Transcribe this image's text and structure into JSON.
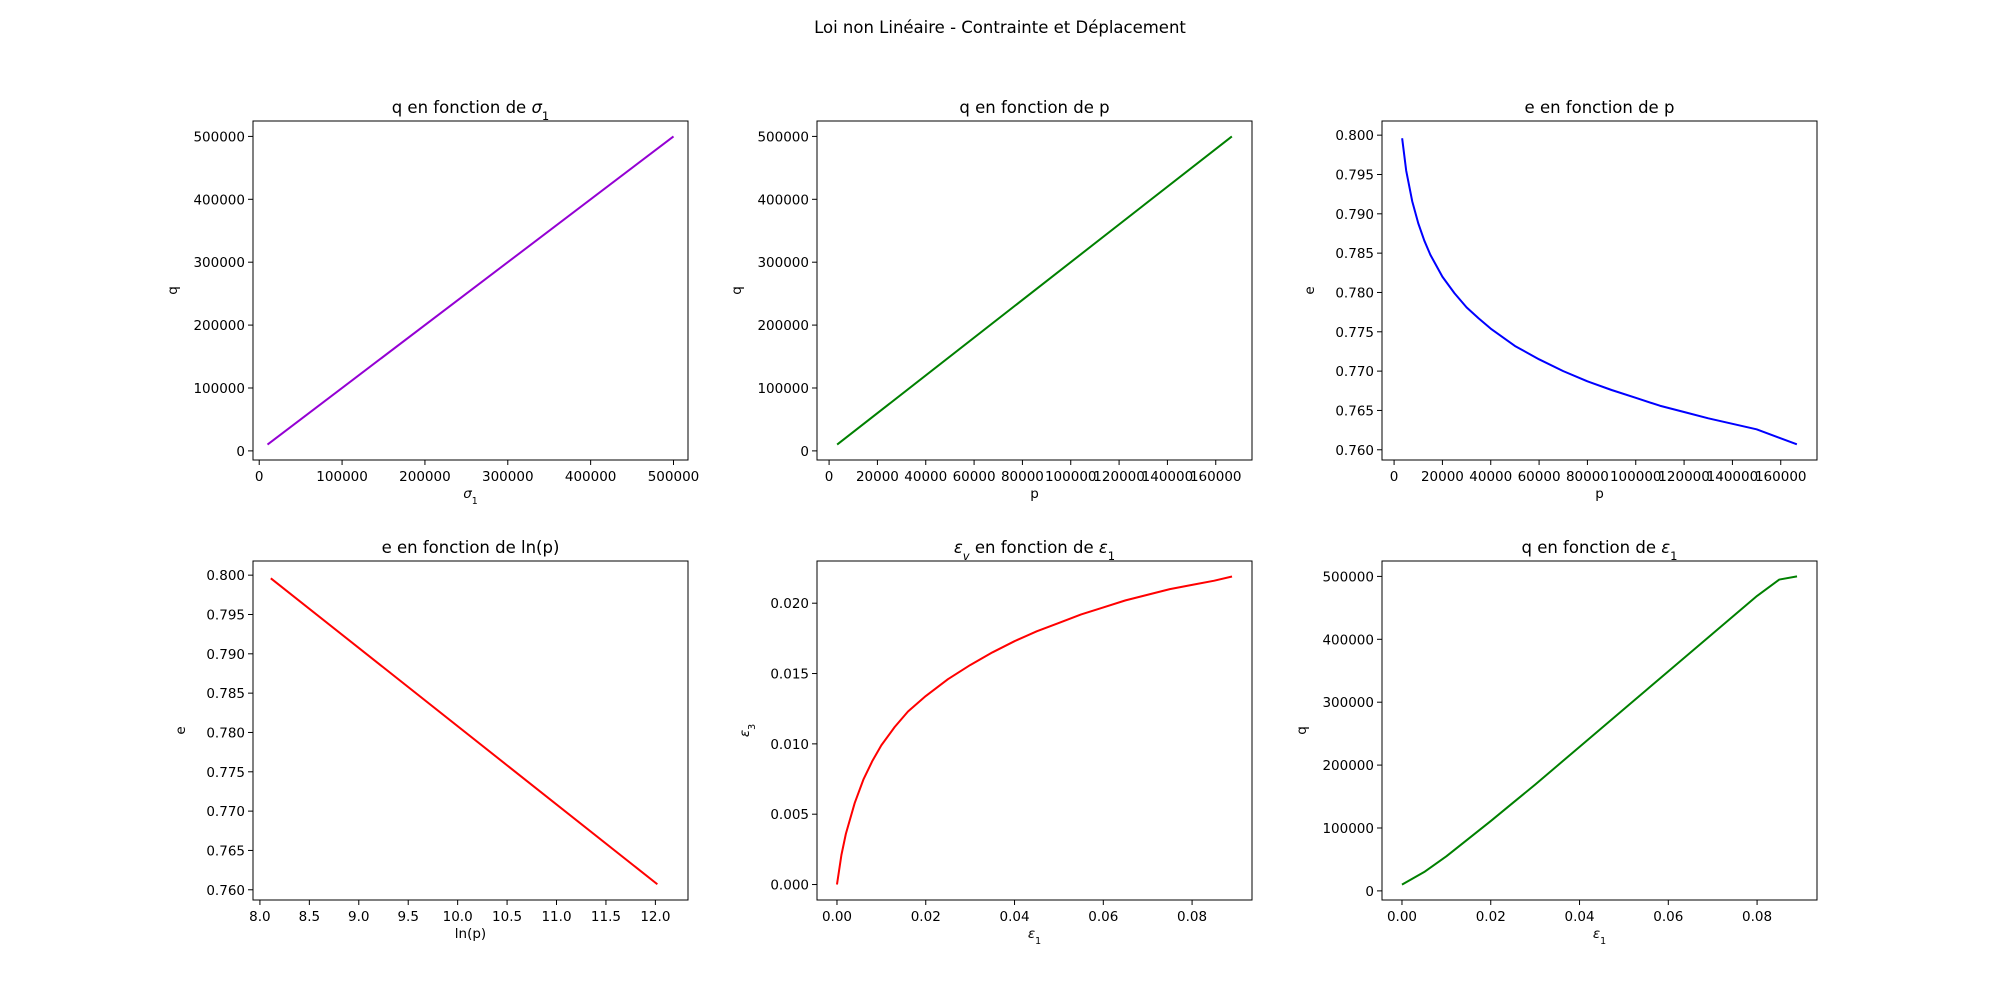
{
  "figure": {
    "suptitle": "Loi non Linéaire - Contrainte et Déplacement"
  },
  "chart_data": [
    {
      "type": "line",
      "title": "q en fonction de σ1",
      "xlabel": "σ1",
      "ylabel": "q",
      "xlim": [
        -7500,
        517500
      ],
      "ylim": [
        -14500,
        524500
      ],
      "xticks": [
        0,
        100000,
        200000,
        300000,
        400000,
        500000
      ],
      "yticks": [
        0,
        100000,
        200000,
        300000,
        400000,
        500000
      ],
      "grid": false,
      "series": [
        {
          "color": "#9400d3",
          "x": [
            10000,
            500000
          ],
          "y": [
            10000,
            500000
          ]
        }
      ]
    },
    {
      "type": "line",
      "title": "q en fonction de p",
      "xlabel": "p",
      "ylabel": "q",
      "xlim": [
        -5000,
        175000
      ],
      "ylim": [
        -14500,
        524500
      ],
      "xticks": [
        0,
        20000,
        40000,
        60000,
        80000,
        100000,
        120000,
        140000,
        160000
      ],
      "yticks": [
        0,
        100000,
        200000,
        300000,
        400000,
        500000
      ],
      "grid": false,
      "series": [
        {
          "color": "#008000",
          "x": [
            3333,
            166667
          ],
          "y": [
            10000,
            500000
          ]
        }
      ]
    },
    {
      "type": "line",
      "title": "e en fonction de p",
      "xlabel": "p",
      "ylabel": "e",
      "xlim": [
        -5000,
        175000
      ],
      "ylim": [
        0.7587,
        0.8018
      ],
      "xticks": [
        0,
        20000,
        40000,
        60000,
        80000,
        100000,
        120000,
        140000,
        160000
      ],
      "yticks": [
        0.76,
        0.765,
        0.77,
        0.775,
        0.78,
        0.785,
        0.79,
        0.795,
        0.8
      ],
      "grid": false,
      "series": [
        {
          "color": "#0000ff",
          "x": [
            3333,
            5000,
            7500,
            10000,
            12500,
            15000,
            20000,
            25000,
            30000,
            35000,
            40000,
            50000,
            60000,
            70000,
            80000,
            90000,
            100000,
            110000,
            120000,
            130000,
            140000,
            150000,
            166667
          ],
          "y": [
            0.7996,
            0.7955,
            0.7916,
            0.7888,
            0.7866,
            0.7848,
            0.782,
            0.7799,
            0.7781,
            0.7767,
            0.7754,
            0.7732,
            0.7715,
            0.77,
            0.7687,
            0.7676,
            0.7666,
            0.7656,
            0.7648,
            0.764,
            0.7633,
            0.7626,
            0.7607
          ]
        }
      ]
    },
    {
      "type": "line",
      "title": "e en fonction de ln(p)",
      "xlabel": "ln(p)",
      "ylabel": "e",
      "xlim": [
        7.93,
        12.33
      ],
      "ylim": [
        0.7587,
        0.8018
      ],
      "xticks": [
        8.0,
        8.5,
        9.0,
        9.5,
        10.0,
        10.5,
        11.0,
        11.5,
        12.0
      ],
      "yticks": [
        0.76,
        0.765,
        0.77,
        0.775,
        0.78,
        0.785,
        0.79,
        0.795,
        0.8
      ],
      "grid": false,
      "series": [
        {
          "color": "#ff0000",
          "x": [
            8.11,
            12.02
          ],
          "y": [
            0.7996,
            0.7607
          ]
        }
      ]
    },
    {
      "type": "line",
      "title": "εv en fonction de ε1",
      "xlabel": "ε1",
      "ylabel": "ε3",
      "xlim": [
        -0.0045,
        0.0935
      ],
      "ylim": [
        -0.0011,
        0.023
      ],
      "xticks": [
        0.0,
        0.02,
        0.04,
        0.06,
        0.08
      ],
      "yticks": [
        0.0,
        0.005,
        0.01,
        0.015,
        0.02
      ],
      "grid": false,
      "series": [
        {
          "color": "#ff0000",
          "x": [
            0.0,
            0.001,
            0.002,
            0.004,
            0.006,
            0.008,
            0.01,
            0.013,
            0.016,
            0.02,
            0.025,
            0.03,
            0.035,
            0.04,
            0.045,
            0.05,
            0.055,
            0.06,
            0.065,
            0.07,
            0.075,
            0.08,
            0.085,
            0.089
          ],
          "y": [
            0.0,
            0.0021,
            0.0036,
            0.0058,
            0.0075,
            0.0088,
            0.0099,
            0.0112,
            0.0123,
            0.0134,
            0.0146,
            0.0156,
            0.0165,
            0.0173,
            0.018,
            0.0186,
            0.0192,
            0.0197,
            0.0202,
            0.0206,
            0.021,
            0.0213,
            0.0216,
            0.0219
          ]
        }
      ]
    },
    {
      "type": "line",
      "title": "q en fonction de ε1",
      "xlabel": "ε1",
      "ylabel": "q",
      "xlim": [
        -0.0045,
        0.0935
      ],
      "ylim": [
        -14500,
        524500
      ],
      "xticks": [
        0.0,
        0.02,
        0.04,
        0.06,
        0.08
      ],
      "yticks": [
        0,
        100000,
        200000,
        300000,
        400000,
        500000
      ],
      "grid": false,
      "series": [
        {
          "color": "#008000",
          "x": [
            0.0,
            0.005,
            0.01,
            0.015,
            0.02,
            0.025,
            0.03,
            0.035,
            0.04,
            0.045,
            0.05,
            0.055,
            0.06,
            0.065,
            0.07,
            0.075,
            0.08,
            0.085,
            0.089
          ],
          "y": [
            10000,
            30000,
            55000,
            83000,
            111000,
            140000,
            169000,
            199000,
            229000,
            259000,
            289000,
            319000,
            349000,
            379000,
            409000,
            439000,
            469000,
            495000,
            500000
          ]
        }
      ]
    }
  ]
}
